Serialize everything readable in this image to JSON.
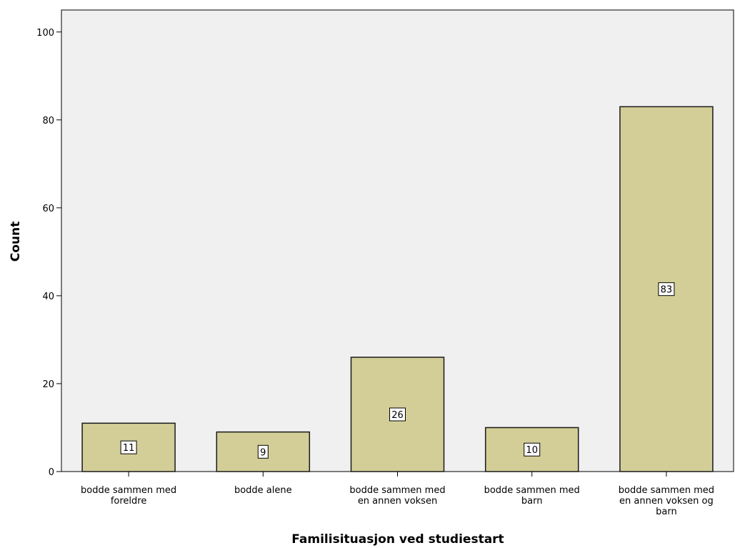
{
  "colors": {
    "plot_background": "#f0f0f0",
    "bar_fill": "#d3ce97",
    "bar_stroke": "#1a1a1a",
    "label_box": "#ffffff"
  },
  "chart_data": {
    "type": "bar",
    "title": "",
    "xlabel": "Familisituasjon ved studiestart",
    "ylabel": "Count",
    "ylim": [
      0,
      105
    ],
    "yticks": [
      0,
      20,
      40,
      60,
      80,
      100
    ],
    "grid": false,
    "categories": [
      [
        "bodde sammen med",
        "foreldre"
      ],
      [
        "bodde alene"
      ],
      [
        "bodde sammen med",
        "en annen voksen"
      ],
      [
        "bodde sammen med",
        "barn"
      ],
      [
        "bodde sammen med",
        "en annen voksen og",
        "barn"
      ]
    ],
    "values": [
      11,
      9,
      26,
      10,
      83
    ],
    "data_labels": [
      "11",
      "9",
      "26",
      "10",
      "83"
    ]
  }
}
